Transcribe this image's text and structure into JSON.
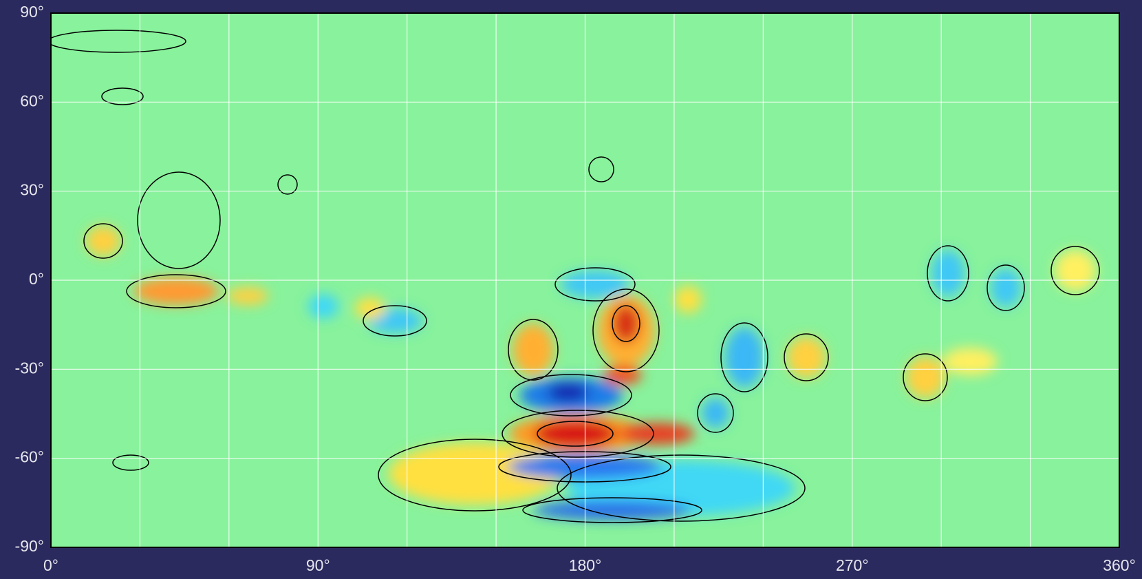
{
  "chart_data": {
    "type": "heatmap",
    "xlim": [
      0,
      360
    ],
    "ylim": [
      -90,
      90
    ],
    "xticks": [
      {
        "value": 0,
        "label": "0°"
      },
      {
        "value": 90,
        "label": "90°"
      },
      {
        "value": 180,
        "label": "180°"
      },
      {
        "value": 270,
        "label": "270°"
      },
      {
        "value": 360,
        "label": "360°"
      }
    ],
    "x_gridlines": [
      30,
      60,
      120,
      150,
      210,
      240,
      300,
      330
    ],
    "yticks": [
      {
        "value": -90,
        "label": "-90°"
      },
      {
        "value": -60,
        "label": "-60°"
      },
      {
        "value": -30,
        "label": "-30°"
      },
      {
        "value": 0,
        "label": "0°"
      },
      {
        "value": 30,
        "label": "30°"
      },
      {
        "value": 60,
        "label": "60°"
      },
      {
        "value": 90,
        "label": "90°"
      }
    ],
    "grid": true,
    "grid_color": "#ffffff",
    "background_color": "#88f29c"
  }
}
